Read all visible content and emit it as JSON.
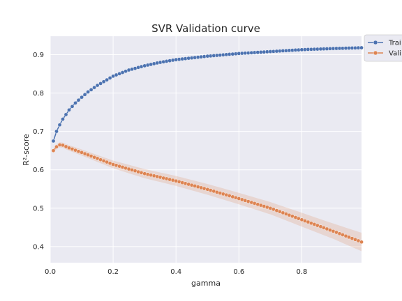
{
  "chart_data": {
    "type": "line",
    "title": "SVR Validation curve",
    "xlabel": "gamma",
    "ylabel": "R²-score",
    "xlim": [
      0,
      0.99
    ],
    "ylim": [
      0.358,
      0.948
    ],
    "xticks": [
      0.0,
      0.2,
      0.4,
      0.6,
      0.8
    ],
    "xtick_labels": [
      "0.0",
      "0.2",
      "0.4",
      "0.6",
      "0.8"
    ],
    "yticks": [
      0.4,
      0.5,
      0.6,
      0.7,
      0.8,
      0.9
    ],
    "ytick_labels": [
      "0.4",
      "0.5",
      "0.6",
      "0.7",
      "0.8",
      "0.9"
    ],
    "grid": true,
    "background": "#eaeaf2",
    "legend_position": "outside-top-right",
    "x": {
      "start": 0.01,
      "stop": 0.99,
      "step": 0.01
    },
    "series": [
      {
        "name": "Training",
        "legend_label": "Trai",
        "color": "#4c72b0",
        "marker": "circle",
        "band": false,
        "anchors": [
          [
            0.01,
            0.675
          ],
          [
            0.02,
            0.7
          ],
          [
            0.03,
            0.717
          ],
          [
            0.04,
            0.732
          ],
          [
            0.06,
            0.756
          ],
          [
            0.08,
            0.774
          ],
          [
            0.1,
            0.789
          ],
          [
            0.12,
            0.803
          ],
          [
            0.15,
            0.82
          ],
          [
            0.2,
            0.844
          ],
          [
            0.25,
            0.86
          ],
          [
            0.3,
            0.871
          ],
          [
            0.35,
            0.88
          ],
          [
            0.4,
            0.887
          ],
          [
            0.5,
            0.896
          ],
          [
            0.6,
            0.903
          ],
          [
            0.7,
            0.908
          ],
          [
            0.8,
            0.913
          ],
          [
            0.9,
            0.916
          ],
          [
            0.99,
            0.918
          ]
        ]
      },
      {
        "name": "Validation",
        "legend_label": "Vali",
        "color": "#dd8452",
        "marker": "circle",
        "band": true,
        "band_color": "#dd8452",
        "anchors": [
          [
            0.01,
            0.65
          ],
          [
            0.02,
            0.66
          ],
          [
            0.03,
            0.665
          ],
          [
            0.04,
            0.664
          ],
          [
            0.06,
            0.657
          ],
          [
            0.1,
            0.645
          ],
          [
            0.2,
            0.614
          ],
          [
            0.3,
            0.59
          ],
          [
            0.4,
            0.571
          ],
          [
            0.5,
            0.549
          ],
          [
            0.6,
            0.525
          ],
          [
            0.7,
            0.5
          ],
          [
            0.8,
            0.47
          ],
          [
            0.9,
            0.44
          ],
          [
            0.99,
            0.412
          ]
        ],
        "band_halfwidth_anchors": [
          [
            0.01,
            0.006
          ],
          [
            0.1,
            0.008
          ],
          [
            0.3,
            0.012
          ],
          [
            0.5,
            0.014
          ],
          [
            0.7,
            0.016
          ],
          [
            0.9,
            0.02
          ],
          [
            0.99,
            0.024
          ]
        ]
      }
    ]
  }
}
